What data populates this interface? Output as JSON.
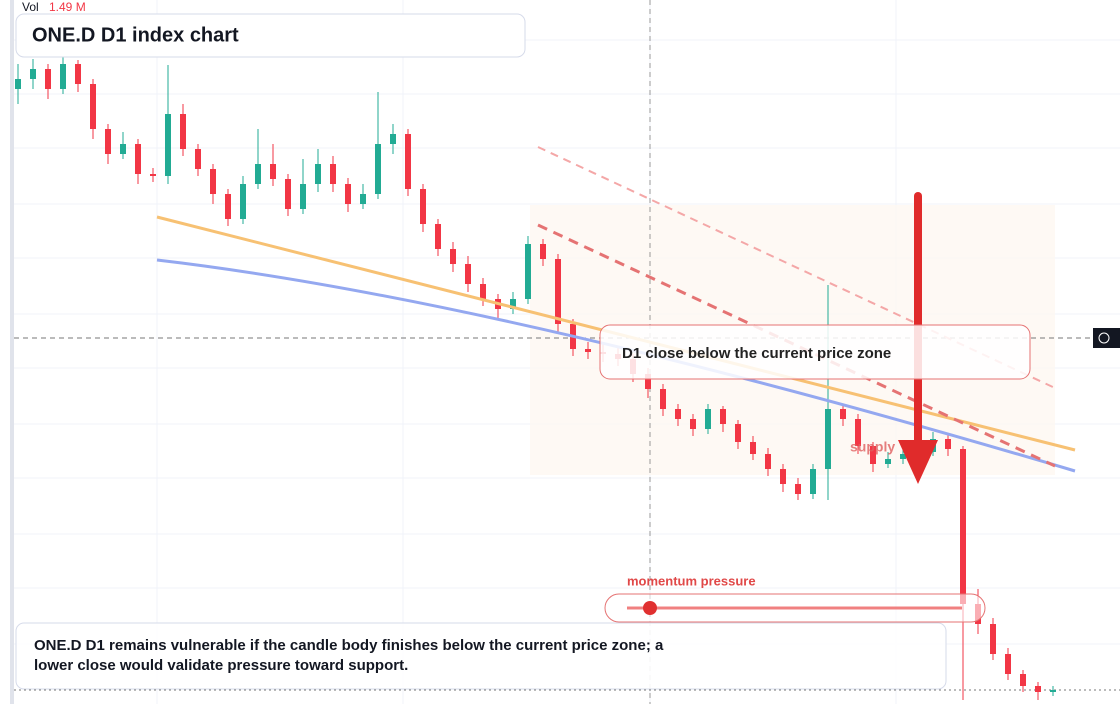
{
  "chart_data": {
    "type": "candlestick",
    "title": "ONE.D D1 index chart",
    "volume_label": "Vol",
    "volume_value": "1.49 M",
    "callout": "D1 close below the current price zone",
    "zone_label": "supply",
    "momentum_label": "momentum pressure",
    "note": "ONE.D D1 remains vulnerable if the candle body finishes below the current price zone; a lower close would validate pressure toward support.",
    "up_color": "#22ab94",
    "down_color": "#f23645",
    "ylim": [
      0,
      704
    ],
    "candles": [
      {
        "open": 615,
        "high": 640,
        "low": 600,
        "close": 625
      },
      {
        "open": 625,
        "high": 645,
        "low": 615,
        "close": 635
      },
      {
        "open": 635,
        "high": 640,
        "low": 605,
        "close": 615
      },
      {
        "open": 615,
        "high": 648,
        "low": 610,
        "close": 640
      },
      {
        "open": 640,
        "high": 644,
        "low": 612,
        "close": 620
      },
      {
        "open": 620,
        "high": 625,
        "low": 565,
        "close": 575
      },
      {
        "open": 575,
        "high": 580,
        "low": 540,
        "close": 550
      },
      {
        "open": 550,
        "high": 572,
        "low": 545,
        "close": 560
      },
      {
        "open": 560,
        "high": 565,
        "low": 520,
        "close": 530
      },
      {
        "open": 530,
        "high": 536,
        "low": 522,
        "close": 528
      },
      {
        "open": 528,
        "high": 639,
        "low": 520,
        "close": 590
      },
      {
        "open": 590,
        "high": 600,
        "low": 548,
        "close": 555
      },
      {
        "open": 555,
        "high": 560,
        "low": 528,
        "close": 535
      },
      {
        "open": 535,
        "high": 540,
        "low": 500,
        "close": 510
      },
      {
        "open": 510,
        "high": 515,
        "low": 478,
        "close": 485
      },
      {
        "open": 485,
        "high": 528,
        "low": 480,
        "close": 520
      },
      {
        "open": 520,
        "high": 575,
        "low": 515,
        "close": 540
      },
      {
        "open": 540,
        "high": 560,
        "low": 518,
        "close": 525
      },
      {
        "open": 525,
        "high": 530,
        "low": 488,
        "close": 495
      },
      {
        "open": 495,
        "high": 545,
        "low": 490,
        "close": 520
      },
      {
        "open": 520,
        "high": 555,
        "low": 512,
        "close": 540
      },
      {
        "open": 540,
        "high": 548,
        "low": 512,
        "close": 520
      },
      {
        "open": 520,
        "high": 526,
        "low": 492,
        "close": 500
      },
      {
        "open": 500,
        "high": 520,
        "low": 495,
        "close": 510
      },
      {
        "open": 510,
        "high": 612,
        "low": 505,
        "close": 560
      },
      {
        "open": 560,
        "high": 580,
        "low": 550,
        "close": 570
      },
      {
        "open": 570,
        "high": 575,
        "low": 508,
        "close": 515
      },
      {
        "open": 515,
        "high": 520,
        "low": 472,
        "close": 480
      },
      {
        "open": 480,
        "high": 485,
        "low": 448,
        "close": 455
      },
      {
        "open": 455,
        "high": 462,
        "low": 432,
        "close": 440
      },
      {
        "open": 440,
        "high": 448,
        "low": 412,
        "close": 420
      },
      {
        "open": 420,
        "high": 426,
        "low": 398,
        "close": 405
      },
      {
        "open": 405,
        "high": 410,
        "low": 386,
        "close": 395
      },
      {
        "open": 395,
        "high": 412,
        "low": 390,
        "close": 405
      },
      {
        "open": 405,
        "high": 468,
        "low": 400,
        "close": 460
      },
      {
        "open": 460,
        "high": 465,
        "low": 438,
        "close": 445
      },
      {
        "open": 445,
        "high": 450,
        "low": 372,
        "close": 380
      },
      {
        "open": 380,
        "high": 385,
        "low": 348,
        "close": 355
      },
      {
        "open": 355,
        "high": 362,
        "low": 345,
        "close": 352
      },
      {
        "open": 352,
        "high": 360,
        "low": 342,
        "close": 350
      },
      {
        "open": 350,
        "high": 356,
        "low": 338,
        "close": 345
      },
      {
        "open": 345,
        "high": 350,
        "low": 322,
        "close": 330
      },
      {
        "open": 330,
        "high": 336,
        "low": 306,
        "close": 315
      },
      {
        "open": 315,
        "high": 320,
        "low": 288,
        "close": 295
      },
      {
        "open": 295,
        "high": 300,
        "low": 278,
        "close": 285
      },
      {
        "open": 285,
        "high": 290,
        "low": 268,
        "close": 275
      },
      {
        "open": 275,
        "high": 300,
        "low": 270,
        "close": 295
      },
      {
        "open": 295,
        "high": 298,
        "low": 272,
        "close": 280
      },
      {
        "open": 280,
        "high": 284,
        "low": 255,
        "close": 262
      },
      {
        "open": 262,
        "high": 268,
        "low": 244,
        "close": 250
      },
      {
        "open": 250,
        "high": 256,
        "low": 228,
        "close": 235
      },
      {
        "open": 235,
        "high": 240,
        "low": 212,
        "close": 220
      },
      {
        "open": 220,
        "high": 226,
        "low": 204,
        "close": 210
      },
      {
        "open": 210,
        "high": 240,
        "low": 205,
        "close": 235
      },
      {
        "open": 235,
        "high": 419,
        "low": 204,
        "close": 295
      },
      {
        "open": 295,
        "high": 300,
        "low": 278,
        "close": 285
      },
      {
        "open": 285,
        "high": 290,
        "low": 250,
        "close": 258
      },
      {
        "open": 258,
        "high": 262,
        "low": 232,
        "close": 240
      },
      {
        "open": 240,
        "high": 252,
        "low": 236,
        "close": 245
      },
      {
        "open": 245,
        "high": 256,
        "low": 240,
        "close": 250
      },
      {
        "open": 250,
        "high": 258,
        "low": 244,
        "close": 252
      },
      {
        "open": 252,
        "high": 272,
        "low": 248,
        "close": 265
      },
      {
        "open": 265,
        "high": 270,
        "low": 248,
        "close": 255
      },
      {
        "open": 255,
        "high": 258,
        "low": 4,
        "close": 100
      },
      {
        "open": 100,
        "high": 115,
        "low": 70,
        "close": 80
      },
      {
        "open": 80,
        "high": 86,
        "low": 44,
        "close": 50
      },
      {
        "open": 50,
        "high": 56,
        "low": 24,
        "close": 30
      },
      {
        "open": 30,
        "high": 34,
        "low": 12,
        "close": 18
      },
      {
        "open": 18,
        "high": 22,
        "low": 4,
        "close": 12
      },
      {
        "open": 12,
        "high": 18,
        "low": 8,
        "close": 14
      }
    ]
  }
}
